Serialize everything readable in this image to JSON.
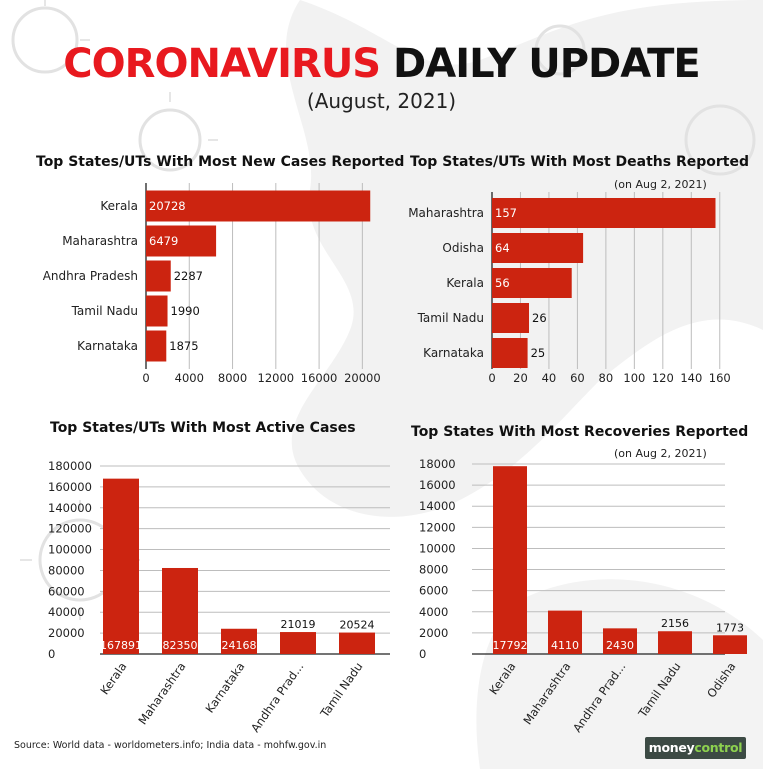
{
  "header": {
    "title_red": "CORONAVIRUS",
    "title_black": "DAILY UPDATE",
    "subtitle": "(August, 2021)"
  },
  "colors": {
    "bar": "#cc2410",
    "accent_red": "#e8191f",
    "grid": "#bdbdbd",
    "axis": "#222222"
  },
  "chart_data": [
    {
      "type": "bar",
      "orientation": "horizontal",
      "title": "Top States/UTs With Most New Cases Reported",
      "categories": [
        "Kerala",
        "Maharashtra",
        "Andhra Pradesh",
        "Tamil Nadu",
        "Karnataka"
      ],
      "values": [
        20728,
        6479,
        2287,
        1990,
        1875
      ],
      "tick_labels": [
        "0",
        "4000",
        "8000",
        "12000",
        "16000",
        "20000"
      ],
      "xlim": [
        0,
        22000
      ],
      "grid": true
    },
    {
      "type": "bar",
      "orientation": "horizontal",
      "title": "Top States/UTs With Most Deaths Reported",
      "note": "(on Aug 2, 2021)",
      "categories": [
        "Maharashtra",
        "Odisha",
        "Kerala",
        "Tamil Nadu",
        "Karnataka"
      ],
      "values": [
        157,
        64,
        56,
        26,
        25
      ],
      "tick_labels": [
        "0",
        "20",
        "40",
        "60",
        "80",
        "100",
        "120",
        "140",
        "160"
      ],
      "xlim": [
        0,
        170
      ],
      "grid": true
    },
    {
      "type": "bar",
      "orientation": "vertical",
      "title": "Top States/UTs With Most Active Cases",
      "categories": [
        "Kerala",
        "Maharashtra",
        "Karnataka",
        "Andhra Prad...",
        "Tamil Nadu"
      ],
      "values": [
        167891,
        82350,
        24168,
        21019,
        20524
      ],
      "tick_labels": [
        "0",
        "20000",
        "40000",
        "60000",
        "80000",
        "100000",
        "120000",
        "140000",
        "160000",
        "180000"
      ],
      "ylim": [
        0,
        180000
      ],
      "grid": true
    },
    {
      "type": "bar",
      "orientation": "vertical",
      "title": "Top States With Most Recoveries Reported",
      "note": "(on Aug 2, 2021)",
      "categories": [
        "Kerala",
        "Maharashtra",
        "Andhra Prad...",
        "Tamil Nadu",
        "Odisha"
      ],
      "values": [
        17792,
        4110,
        2430,
        2156,
        1773
      ],
      "tick_labels": [
        "0",
        "2000",
        "4000",
        "6000",
        "8000",
        "10000",
        "12000",
        "14000",
        "16000",
        "18000"
      ],
      "ylim": [
        0,
        18000
      ],
      "grid": true
    }
  ],
  "footer": {
    "source": "Source: World data - worldometers.info; India data - mohfw.gov.in",
    "logo_part1": "money",
    "logo_part2": "control"
  }
}
